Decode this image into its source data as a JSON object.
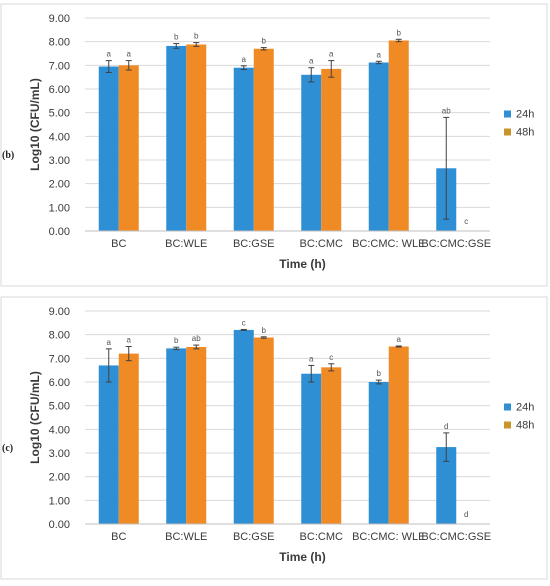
{
  "colors": {
    "series_24h": "#2e8fd4",
    "series_48h": "#f08a24",
    "grid": "#d9d9d9",
    "error": "#404040",
    "legend_48h_marker": "#c9952a"
  },
  "chart_data": [
    {
      "type": "bar",
      "panel_label": "(b)",
      "categories": [
        "BC",
        "BC:WLE",
        "BC:GSE",
        "BC:CMC",
        "BC:CMC: WLE",
        "BC:CMC:GSE"
      ],
      "ylabel": "Log10 (CFU/mL)",
      "xlabel": "Time (h)",
      "ylim": [
        0,
        9
      ],
      "yticks": [
        "0.00",
        "1.00",
        "2.00",
        "3.00",
        "4.00",
        "5.00",
        "6.00",
        "7.00",
        "8.00",
        "9.00"
      ],
      "grid": true,
      "legend": "right",
      "series": [
        {
          "name": "24h",
          "values": [
            6.95,
            7.82,
            6.9,
            6.6,
            7.12,
            2.65
          ],
          "errors": [
            0.25,
            0.1,
            0.08,
            0.3,
            0.05,
            2.15
          ],
          "letters": [
            "a",
            "b",
            "a",
            "a",
            "a",
            "ab"
          ]
        },
        {
          "name": "48h",
          "values": [
            7.0,
            7.88,
            7.7,
            6.85,
            8.05,
            0
          ],
          "errors": [
            0.2,
            0.08,
            0.05,
            0.35,
            0.05,
            0
          ],
          "letters": [
            "a",
            "b",
            "b",
            "a",
            "b",
            "c"
          ]
        }
      ]
    },
    {
      "type": "bar",
      "panel_label": "(c)",
      "categories": [
        "BC",
        "BC:WLE",
        "BC:GSE",
        "BC:CMC",
        "BC:CMC: WLE",
        "BC:CMC:GSE"
      ],
      "ylabel": "Log10 (CFU/mL)",
      "xlabel": "Time (h)",
      "ylim": [
        0,
        9
      ],
      "yticks": [
        "0.00",
        "1.00",
        "2.00",
        "3.00",
        "4.00",
        "5.00",
        "6.00",
        "7.00",
        "8.00",
        "9.00"
      ],
      "grid": true,
      "legend": "right",
      "series": [
        {
          "name": "24h",
          "values": [
            6.7,
            7.42,
            8.2,
            6.35,
            6.0,
            3.25
          ],
          "errors": [
            0.7,
            0.05,
            0.02,
            0.35,
            0.08,
            0.6
          ],
          "letters": [
            "a",
            "b",
            "c",
            "a",
            "b",
            "d"
          ]
        },
        {
          "name": "48h",
          "values": [
            7.2,
            7.48,
            7.88,
            6.62,
            7.5,
            0
          ],
          "errors": [
            0.3,
            0.08,
            0.03,
            0.15,
            0.02,
            0
          ],
          "letters": [
            "a",
            "ab",
            "b",
            "c",
            "a",
            "d"
          ]
        }
      ]
    }
  ]
}
